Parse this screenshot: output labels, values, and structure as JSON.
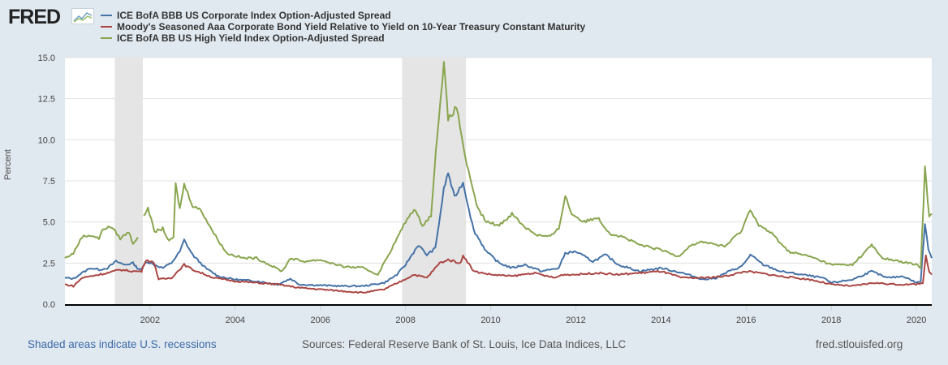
{
  "header": {
    "logo_text": "FRED",
    "logo_icon": "chart-line-icon"
  },
  "footer": {
    "recession_note": "Shaded areas indicate U.S. recessions",
    "sources": "Sources: Federal Reserve Bank of St. Louis, Ice Data Indices, LLC",
    "site": "fred.stlouisfed.org"
  },
  "chart_data": {
    "type": "line",
    "title": "",
    "xlabel": "",
    "ylabel": "Percent",
    "xlim": [
      2000.0,
      2020.36
    ],
    "ylim": [
      0,
      15
    ],
    "grid": true,
    "legend_position": "top-left",
    "x_ticks": [
      "2002",
      "2004",
      "2006",
      "2008",
      "2010",
      "2012",
      "2014",
      "2016",
      "2018",
      "2020"
    ],
    "y_ticks": [
      "0.0",
      "2.5",
      "5.0",
      "7.5",
      "10.0",
      "12.5",
      "15.0"
    ],
    "recessions": [
      [
        2001.17,
        2001.83
      ],
      [
        2007.92,
        2009.42
      ]
    ],
    "series": [
      {
        "name": "ICE BofA BBB US Corporate Index Option-Adjusted Spread",
        "color": "#4572a7",
        "points": [
          [
            2000.0,
            1.6
          ],
          [
            2000.2,
            1.55
          ],
          [
            2000.4,
            1.9
          ],
          [
            2000.6,
            2.2
          ],
          [
            2000.8,
            2.1
          ],
          [
            2001.0,
            2.2
          ],
          [
            2001.2,
            2.6
          ],
          [
            2001.4,
            2.4
          ],
          [
            2001.6,
            2.5
          ],
          [
            2001.7,
            2.2
          ],
          [
            2001.8,
            2.1
          ],
          [
            2001.9,
            2.6
          ],
          [
            2002.1,
            2.4
          ],
          [
            2002.3,
            2.2
          ],
          [
            2002.5,
            2.5
          ],
          [
            2002.7,
            3.2
          ],
          [
            2002.8,
            3.9
          ],
          [
            2003.0,
            3.0
          ],
          [
            2003.3,
            2.2
          ],
          [
            2003.6,
            1.7
          ],
          [
            2004.0,
            1.5
          ],
          [
            2004.5,
            1.4
          ],
          [
            2005.0,
            1.2
          ],
          [
            2005.3,
            1.55
          ],
          [
            2005.5,
            1.2
          ],
          [
            2006.0,
            1.15
          ],
          [
            2006.5,
            1.1
          ],
          [
            2007.0,
            1.1
          ],
          [
            2007.5,
            1.3
          ],
          [
            2007.8,
            1.8
          ],
          [
            2008.0,
            2.4
          ],
          [
            2008.3,
            3.6
          ],
          [
            2008.5,
            3.0
          ],
          [
            2008.7,
            3.4
          ],
          [
            2008.9,
            7.0
          ],
          [
            2009.0,
            8.0
          ],
          [
            2009.15,
            6.5
          ],
          [
            2009.35,
            7.4
          ],
          [
            2009.6,
            4.5
          ],
          [
            2009.9,
            3.2
          ],
          [
            2010.2,
            2.5
          ],
          [
            2010.5,
            2.2
          ],
          [
            2010.8,
            2.4
          ],
          [
            2011.2,
            2.0
          ],
          [
            2011.6,
            2.2
          ],
          [
            2011.75,
            3.1
          ],
          [
            2012.0,
            3.2
          ],
          [
            2012.4,
            2.6
          ],
          [
            2012.7,
            3.0
          ],
          [
            2013.0,
            2.4
          ],
          [
            2013.5,
            2.0
          ],
          [
            2014.0,
            2.2
          ],
          [
            2014.5,
            1.9
          ],
          [
            2015.0,
            1.5
          ],
          [
            2015.3,
            1.6
          ],
          [
            2015.6,
            2.0
          ],
          [
            2015.9,
            2.3
          ],
          [
            2016.1,
            3.0
          ],
          [
            2016.4,
            2.4
          ],
          [
            2016.8,
            2.0
          ],
          [
            2017.3,
            1.8
          ],
          [
            2017.8,
            1.6
          ],
          [
            2018.0,
            1.3
          ],
          [
            2018.5,
            1.5
          ],
          [
            2018.95,
            2.0
          ],
          [
            2019.3,
            1.6
          ],
          [
            2019.7,
            1.7
          ],
          [
            2020.0,
            1.3
          ],
          [
            2020.1,
            1.4
          ],
          [
            2020.2,
            4.9
          ],
          [
            2020.28,
            3.4
          ],
          [
            2020.36,
            2.8
          ]
        ]
      },
      {
        "name": "Moody's Seasoned Aaa Corporate Bond Yield Relative to Yield on 10-Year Treasury Constant Maturity",
        "color": "#aa4643",
        "points": [
          [
            2000.0,
            1.2
          ],
          [
            2000.2,
            1.1
          ],
          [
            2000.4,
            1.6
          ],
          [
            2000.6,
            1.7
          ],
          [
            2000.8,
            1.8
          ],
          [
            2001.0,
            1.9
          ],
          [
            2001.3,
            2.1
          ],
          [
            2001.6,
            2.0
          ],
          [
            2001.8,
            2.0
          ],
          [
            2001.9,
            2.7
          ],
          [
            2002.1,
            2.5
          ],
          [
            2002.2,
            1.5
          ],
          [
            2002.5,
            1.6
          ],
          [
            2002.8,
            2.4
          ],
          [
            2003.0,
            2.1
          ],
          [
            2003.5,
            1.6
          ],
          [
            2004.0,
            1.4
          ],
          [
            2004.5,
            1.3
          ],
          [
            2005.0,
            1.2
          ],
          [
            2005.5,
            1.0
          ],
          [
            2006.0,
            0.9
          ],
          [
            2006.5,
            0.8
          ],
          [
            2007.0,
            0.7
          ],
          [
            2007.5,
            0.9
          ],
          [
            2007.9,
            1.4
          ],
          [
            2008.2,
            1.8
          ],
          [
            2008.5,
            1.6
          ],
          [
            2008.8,
            2.5
          ],
          [
            2009.0,
            2.7
          ],
          [
            2009.3,
            2.5
          ],
          [
            2009.35,
            3.0
          ],
          [
            2009.6,
            2.0
          ],
          [
            2010.0,
            1.8
          ],
          [
            2010.5,
            1.7
          ],
          [
            2011.0,
            1.9
          ],
          [
            2011.5,
            1.6
          ],
          [
            2011.7,
            1.8
          ],
          [
            2012.0,
            1.8
          ],
          [
            2012.5,
            1.9
          ],
          [
            2013.0,
            1.8
          ],
          [
            2013.5,
            1.9
          ],
          [
            2014.0,
            2.0
          ],
          [
            2014.5,
            1.6
          ],
          [
            2015.0,
            1.6
          ],
          [
            2015.5,
            1.7
          ],
          [
            2016.0,
            2.0
          ],
          [
            2016.3,
            1.9
          ],
          [
            2016.8,
            1.7
          ],
          [
            2017.5,
            1.5
          ],
          [
            2018.0,
            1.2
          ],
          [
            2018.5,
            1.1
          ],
          [
            2019.0,
            1.3
          ],
          [
            2019.5,
            1.2
          ],
          [
            2019.95,
            1.2
          ],
          [
            2020.15,
            1.3
          ],
          [
            2020.22,
            3.0
          ],
          [
            2020.3,
            1.9
          ],
          [
            2020.36,
            1.8
          ]
        ]
      },
      {
        "name": "ICE BofA BB US High Yield Index Option-Adjusted Spread",
        "color": "#89a54e",
        "points": [
          [
            2000.0,
            2.8
          ],
          [
            2000.2,
            3.1
          ],
          [
            2000.4,
            4.1
          ],
          [
            2000.6,
            4.2
          ],
          [
            2000.8,
            4.0
          ],
          [
            2000.9,
            4.6
          ],
          [
            2001.1,
            4.7
          ],
          [
            2001.3,
            4.0
          ],
          [
            2001.5,
            4.4
          ],
          [
            2001.6,
            3.7
          ],
          [
            2001.75,
            4.2
          ],
          [
            2001.8,
            null
          ],
          [
            2001.85,
            5.3
          ],
          [
            2001.95,
            5.9
          ],
          [
            2002.1,
            4.4
          ],
          [
            2002.3,
            4.6
          ],
          [
            2002.45,
            3.8
          ],
          [
            2002.55,
            4.1
          ],
          [
            2002.6,
            7.3
          ],
          [
            2002.7,
            5.8
          ],
          [
            2002.8,
            7.3
          ],
          [
            2003.0,
            6.0
          ],
          [
            2003.2,
            5.7
          ],
          [
            2003.5,
            4.3
          ],
          [
            2003.8,
            3.1
          ],
          [
            2004.2,
            2.8
          ],
          [
            2004.5,
            2.8
          ],
          [
            2004.8,
            2.4
          ],
          [
            2005.1,
            2.0
          ],
          [
            2005.3,
            2.8
          ],
          [
            2005.6,
            2.6
          ],
          [
            2006.0,
            2.7
          ],
          [
            2006.5,
            2.3
          ],
          [
            2007.0,
            2.2
          ],
          [
            2007.35,
            1.8
          ],
          [
            2007.6,
            3.0
          ],
          [
            2007.8,
            4.0
          ],
          [
            2008.0,
            5.0
          ],
          [
            2008.2,
            5.8
          ],
          [
            2008.4,
            4.8
          ],
          [
            2008.6,
            5.4
          ],
          [
            2008.75,
            10.5
          ],
          [
            2008.9,
            14.7
          ],
          [
            2009.0,
            11.2
          ],
          [
            2009.2,
            12.0
          ],
          [
            2009.4,
            9.0
          ],
          [
            2009.55,
            7.2
          ],
          [
            2009.7,
            5.8
          ],
          [
            2009.9,
            5.0
          ],
          [
            2010.2,
            4.8
          ],
          [
            2010.5,
            5.5
          ],
          [
            2010.8,
            4.7
          ],
          [
            2011.1,
            4.2
          ],
          [
            2011.4,
            4.1
          ],
          [
            2011.6,
            4.6
          ],
          [
            2011.75,
            6.6
          ],
          [
            2011.9,
            5.5
          ],
          [
            2012.2,
            5.0
          ],
          [
            2012.5,
            5.3
          ],
          [
            2012.8,
            4.3
          ],
          [
            2013.1,
            4.1
          ],
          [
            2013.5,
            3.6
          ],
          [
            2014.0,
            3.3
          ],
          [
            2014.4,
            2.9
          ],
          [
            2014.7,
            3.6
          ],
          [
            2015.0,
            3.8
          ],
          [
            2015.5,
            3.5
          ],
          [
            2015.9,
            4.5
          ],
          [
            2016.1,
            5.8
          ],
          [
            2016.3,
            4.8
          ],
          [
            2016.6,
            4.3
          ],
          [
            2017.0,
            3.2
          ],
          [
            2017.5,
            2.9
          ],
          [
            2018.0,
            2.4
          ],
          [
            2018.5,
            2.4
          ],
          [
            2018.95,
            3.6
          ],
          [
            2019.2,
            2.8
          ],
          [
            2019.6,
            2.6
          ],
          [
            2020.0,
            2.4
          ],
          [
            2020.1,
            2.2
          ],
          [
            2020.2,
            8.3
          ],
          [
            2020.3,
            5.3
          ],
          [
            2020.36,
            5.5
          ]
        ]
      }
    ]
  }
}
